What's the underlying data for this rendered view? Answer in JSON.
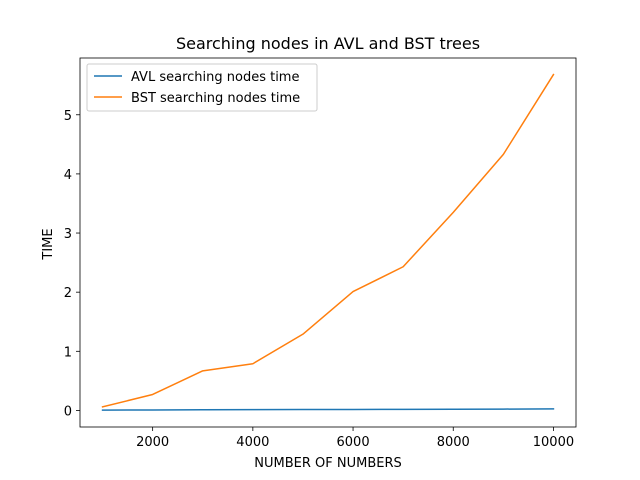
{
  "chart_data": {
    "type": "line",
    "title": "Searching nodes in AVL and BST trees",
    "xlabel": "NUMBER OF NUMBERS",
    "ylabel": "TIME",
    "x": [
      1000,
      2000,
      3000,
      4000,
      5000,
      6000,
      7000,
      8000,
      9000,
      10000
    ],
    "xlim": [
      550,
      10450
    ],
    "ylim": [
      -0.28,
      5.96
    ],
    "xticks": [
      2000,
      4000,
      6000,
      8000,
      10000
    ],
    "yticks": [
      0,
      1,
      2,
      3,
      4,
      5
    ],
    "xtick_labels": [
      "2000",
      "4000",
      "6000",
      "8000",
      "10000"
    ],
    "ytick_labels": [
      "0",
      "1",
      "2",
      "3",
      "4",
      "5"
    ],
    "grid": false,
    "legend_position": "upper-left",
    "series": [
      {
        "name": "AVL searching nodes time",
        "color": "#1f77b4",
        "values": [
          0.005,
          0.008,
          0.011,
          0.013,
          0.015,
          0.017,
          0.019,
          0.021,
          0.023,
          0.026
        ]
      },
      {
        "name": "BST searching nodes time",
        "color": "#ff7f0e",
        "values": [
          0.06,
          0.27,
          0.67,
          0.79,
          1.29,
          2.01,
          2.43,
          3.35,
          4.33,
          5.68
        ]
      }
    ]
  }
}
